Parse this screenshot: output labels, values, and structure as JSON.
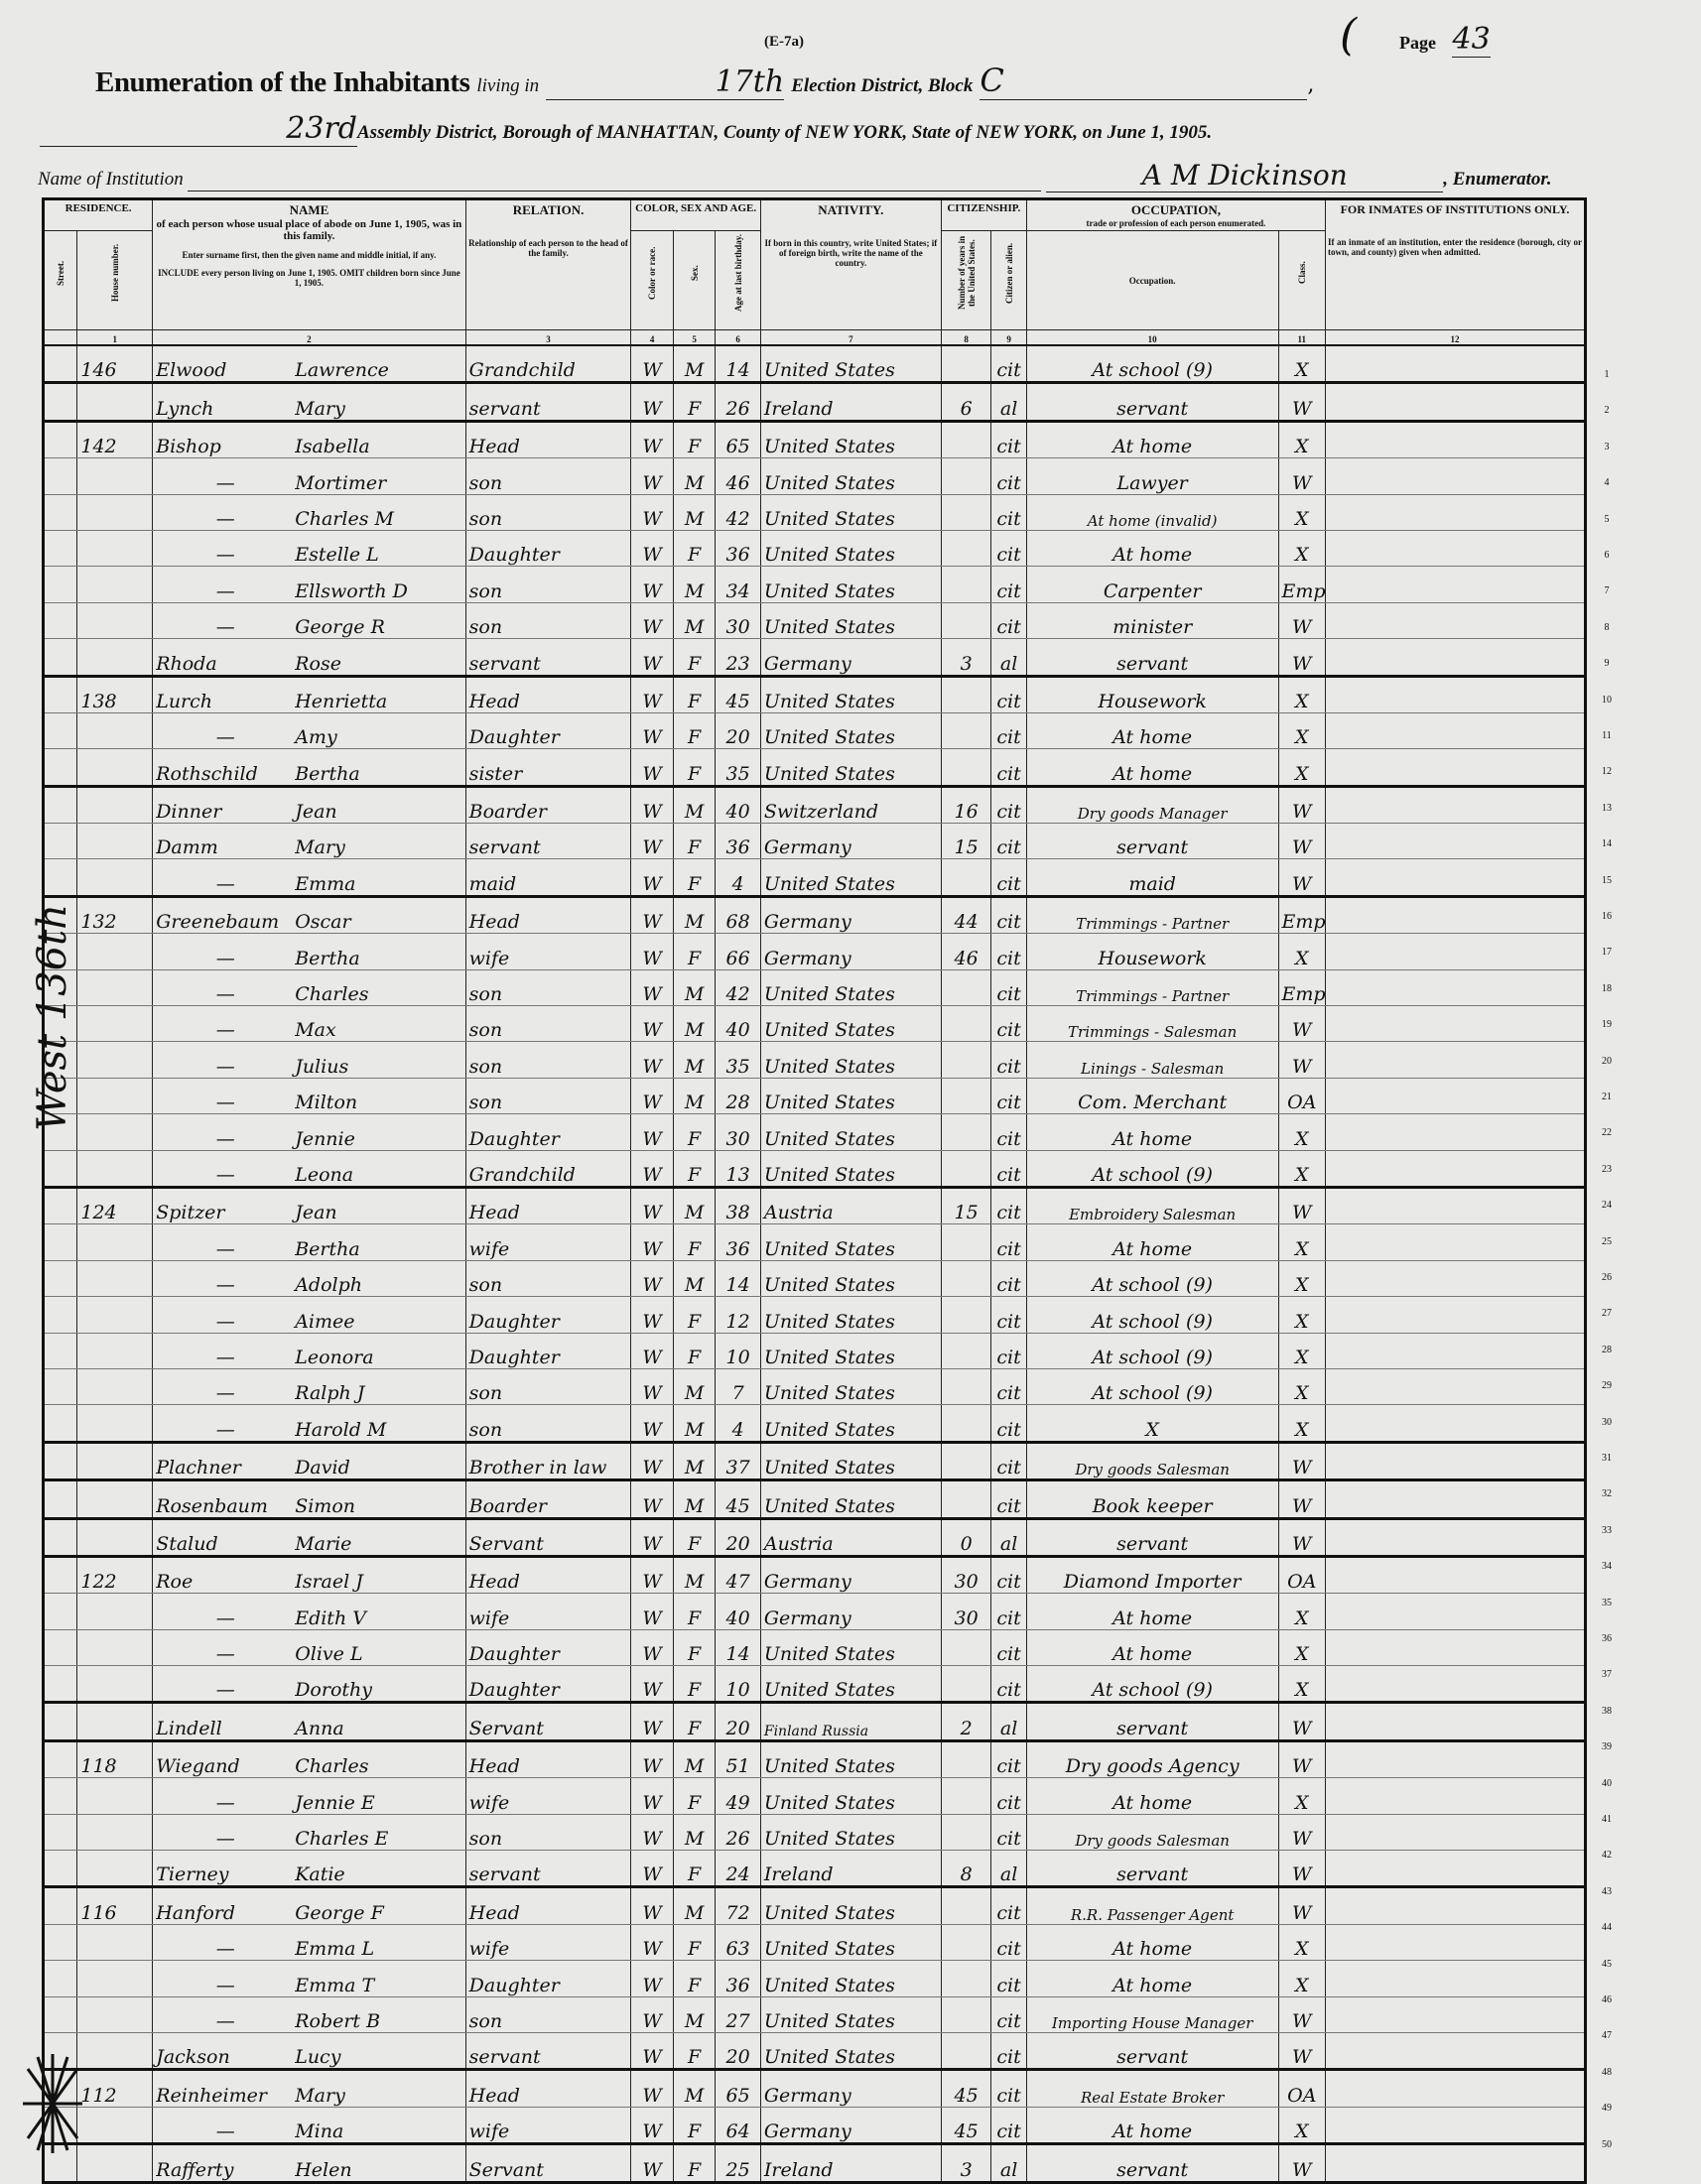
{
  "header": {
    "form_code": "(E-7a)",
    "page_label": "Page",
    "page_number": "43",
    "title_lead": "Enumeration of the Inhabitants",
    "living_in": "living in",
    "election_district": "17th",
    "election_district_label": "Election District, Block",
    "block": "C",
    "assembly_district": "23rd",
    "line2_text": "Assembly District, Borough of MANHATTAN, County of NEW YORK, State of NEW YORK, on June 1, 1905.",
    "institution_label": "Name of Institution",
    "enumerator_signature": "A M Dickinson",
    "enumerator_label": ", Enumerator."
  },
  "columns": {
    "residence": "RESIDENCE.",
    "street": "Street.",
    "house": "House number.",
    "name": "NAME",
    "name_desc": "of each person whose usual place of abode on June 1, 1905, was in this family.",
    "name_instr": "Enter surname first, then the given name and middle initial, if any.",
    "name_instr2": "INCLUDE every person living on June 1, 1905. OMIT children born since June 1, 1905.",
    "relation": "RELATION.",
    "relation_desc": "Relationship of each person to the head of the family.",
    "color_sex_age": "COLOR, SEX AND AGE.",
    "color": "Color or race.",
    "sex": "Sex.",
    "age": "Age at last birthday.",
    "nativity": "NATIVITY.",
    "nativity_desc": "If born in this country, write United States; if of foreign birth, write the name of the country.",
    "citizenship": "CITIZENSHIP.",
    "years_us": "Number of years in the United States.",
    "citizen_alien": "Citizen or alien.",
    "occupation": "OCCUPATION,",
    "occupation_desc": "trade or profession of each person enumerated.",
    "occupation_sub": "Occupation.",
    "class": "Class.",
    "inmates": "FOR INMATES OF INSTITUTIONS ONLY.",
    "inmates_desc": "If an inmate of an institution, enter the residence (borough, city or town, and county) given when admitted.",
    "numbers": [
      "1",
      "2",
      "3",
      "4",
      "5",
      "6",
      "7",
      "8",
      "9",
      "10",
      "11",
      "12"
    ]
  },
  "margin_note": "West 136th",
  "rows": [
    [
      "146",
      "Elwood",
      "Lawrence",
      "Grandchild",
      "W",
      "M",
      "14",
      "United States",
      "",
      "cit",
      "At school (9)",
      "X"
    ],
    [
      "",
      "Lynch",
      "Mary",
      "servant",
      "W",
      "F",
      "26",
      "Ireland",
      "6",
      "al",
      "servant",
      "W"
    ],
    [
      "142",
      "Bishop",
      "Isabella",
      "Head",
      "W",
      "F",
      "65",
      "United States",
      "",
      "cit",
      "At home",
      "X"
    ],
    [
      "",
      "—",
      "Mortimer",
      "son",
      "W",
      "M",
      "46",
      "United States",
      "",
      "cit",
      "Lawyer",
      "W"
    ],
    [
      "",
      "—",
      "Charles M",
      "son",
      "W",
      "M",
      "42",
      "United States",
      "",
      "cit",
      "At home (invalid)",
      "X"
    ],
    [
      "",
      "—",
      "Estelle L",
      "Daughter",
      "W",
      "F",
      "36",
      "United States",
      "",
      "cit",
      "At home",
      "X"
    ],
    [
      "",
      "—",
      "Ellsworth D",
      "son",
      "W",
      "M",
      "34",
      "United States",
      "",
      "cit",
      "Carpenter",
      "Emp"
    ],
    [
      "",
      "—",
      "George R",
      "son",
      "W",
      "M",
      "30",
      "United States",
      "",
      "cit",
      "minister",
      "W"
    ],
    [
      "",
      "Rhoda",
      "Rose",
      "servant",
      "W",
      "F",
      "23",
      "Germany",
      "3",
      "al",
      "servant",
      "W"
    ],
    [
      "138",
      "Lurch",
      "Henrietta",
      "Head",
      "W",
      "F",
      "45",
      "United States",
      "",
      "cit",
      "Housework",
      "X"
    ],
    [
      "",
      "—",
      "Amy",
      "Daughter",
      "W",
      "F",
      "20",
      "United States",
      "",
      "cit",
      "At home",
      "X"
    ],
    [
      "",
      "Rothschild",
      "Bertha",
      "sister",
      "W",
      "F",
      "35",
      "United States",
      "",
      "cit",
      "At home",
      "X"
    ],
    [
      "",
      "Dinner",
      "Jean",
      "Boarder",
      "W",
      "M",
      "40",
      "Switzerland",
      "16",
      "cit",
      "Dry goods Manager",
      "W"
    ],
    [
      "",
      "Damm",
      "Mary",
      "servant",
      "W",
      "F",
      "36",
      "Germany",
      "15",
      "cit",
      "servant",
      "W"
    ],
    [
      "",
      "—",
      "Emma",
      "maid",
      "W",
      "F",
      "4",
      "United States",
      "",
      "cit",
      "maid",
      "W"
    ],
    [
      "132",
      "Greenebaum",
      "Oscar",
      "Head",
      "W",
      "M",
      "68",
      "Germany",
      "44",
      "cit",
      "Trimmings - Partner",
      "Emp"
    ],
    [
      "",
      "—",
      "Bertha",
      "wife",
      "W",
      "F",
      "66",
      "Germany",
      "46",
      "cit",
      "Housework",
      "X"
    ],
    [
      "",
      "—",
      "Charles",
      "son",
      "W",
      "M",
      "42",
      "United States",
      "",
      "cit",
      "Trimmings - Partner",
      "Emp"
    ],
    [
      "",
      "—",
      "Max",
      "son",
      "W",
      "M",
      "40",
      "United States",
      "",
      "cit",
      "Trimmings - Salesman",
      "W"
    ],
    [
      "",
      "—",
      "Julius",
      "son",
      "W",
      "M",
      "35",
      "United States",
      "",
      "cit",
      "Linings - Salesman",
      "W"
    ],
    [
      "",
      "—",
      "Milton",
      "son",
      "W",
      "M",
      "28",
      "United States",
      "",
      "cit",
      "Com. Merchant",
      "OA"
    ],
    [
      "",
      "—",
      "Jennie",
      "Daughter",
      "W",
      "F",
      "30",
      "United States",
      "",
      "cit",
      "At home",
      "X"
    ],
    [
      "",
      "—",
      "Leona",
      "Grandchild",
      "W",
      "F",
      "13",
      "United States",
      "",
      "cit",
      "At school (9)",
      "X"
    ],
    [
      "124",
      "Spitzer",
      "Jean",
      "Head",
      "W",
      "M",
      "38",
      "Austria",
      "15",
      "cit",
      "Embroidery Salesman",
      "W"
    ],
    [
      "",
      "—",
      "Bertha",
      "wife",
      "W",
      "F",
      "36",
      "United States",
      "",
      "cit",
      "At home",
      "X"
    ],
    [
      "",
      "—",
      "Adolph",
      "son",
      "W",
      "M",
      "14",
      "United States",
      "",
      "cit",
      "At school (9)",
      "X"
    ],
    [
      "",
      "—",
      "Aimee",
      "Daughter",
      "W",
      "F",
      "12",
      "United States",
      "",
      "cit",
      "At school (9)",
      "X"
    ],
    [
      "",
      "—",
      "Leonora",
      "Daughter",
      "W",
      "F",
      "10",
      "United States",
      "",
      "cit",
      "At school (9)",
      "X"
    ],
    [
      "",
      "—",
      "Ralph J",
      "son",
      "W",
      "M",
      "7",
      "United States",
      "",
      "cit",
      "At school (9)",
      "X"
    ],
    [
      "",
      "—",
      "Harold M",
      "son",
      "W",
      "M",
      "4",
      "United States",
      "",
      "cit",
      "X",
      "X"
    ],
    [
      "",
      "Plachner",
      "David",
      "Brother in law",
      "W",
      "M",
      "37",
      "United States",
      "",
      "cit",
      "Dry goods Salesman",
      "W"
    ],
    [
      "",
      "Rosenbaum",
      "Simon",
      "Boarder",
      "W",
      "M",
      "45",
      "United States",
      "",
      "cit",
      "Book keeper",
      "W"
    ],
    [
      "",
      "Stalud",
      "Marie",
      "Servant",
      "W",
      "F",
      "20",
      "Austria",
      "0",
      "al",
      "servant",
      "W"
    ],
    [
      "122",
      "Roe",
      "Israel J",
      "Head",
      "W",
      "M",
      "47",
      "Germany",
      "30",
      "cit",
      "Diamond Importer",
      "OA"
    ],
    [
      "",
      "—",
      "Edith V",
      "wife",
      "W",
      "F",
      "40",
      "Germany",
      "30",
      "cit",
      "At home",
      "X"
    ],
    [
      "",
      "—",
      "Olive L",
      "Daughter",
      "W",
      "F",
      "14",
      "United States",
      "",
      "cit",
      "At home",
      "X"
    ],
    [
      "",
      "—",
      "Dorothy",
      "Daughter",
      "W",
      "F",
      "10",
      "United States",
      "",
      "cit",
      "At school (9)",
      "X"
    ],
    [
      "",
      "Lindell",
      "Anna",
      "Servant",
      "W",
      "F",
      "20",
      "Finland Russia",
      "2",
      "al",
      "servant",
      "W"
    ],
    [
      "118",
      "Wiegand",
      "Charles",
      "Head",
      "W",
      "M",
      "51",
      "United States",
      "",
      "cit",
      "Dry goods Agency",
      "W"
    ],
    [
      "",
      "—",
      "Jennie E",
      "wife",
      "W",
      "F",
      "49",
      "United States",
      "",
      "cit",
      "At home",
      "X"
    ],
    [
      "",
      "—",
      "Charles E",
      "son",
      "W",
      "M",
      "26",
      "United States",
      "",
      "cit",
      "Dry goods Salesman",
      "W"
    ],
    [
      "",
      "Tierney",
      "Katie",
      "servant",
      "W",
      "F",
      "24",
      "Ireland",
      "8",
      "al",
      "servant",
      "W"
    ],
    [
      "116",
      "Hanford",
      "George F",
      "Head",
      "W",
      "M",
      "72",
      "United States",
      "",
      "cit",
      "R.R. Passenger Agent",
      "W"
    ],
    [
      "",
      "—",
      "Emma L",
      "wife",
      "W",
      "F",
      "63",
      "United States",
      "",
      "cit",
      "At home",
      "X"
    ],
    [
      "",
      "—",
      "Emma T",
      "Daughter",
      "W",
      "F",
      "36",
      "United States",
      "",
      "cit",
      "At home",
      "X"
    ],
    [
      "",
      "—",
      "Robert B",
      "son",
      "W",
      "M",
      "27",
      "United States",
      "",
      "cit",
      "Importing House Manager",
      "W"
    ],
    [
      "",
      "Jackson",
      "Lucy",
      "servant",
      "W",
      "F",
      "20",
      "United States",
      "",
      "cit",
      "servant",
      "W"
    ],
    [
      "112",
      "Reinheimer",
      "Mary",
      "Head",
      "W",
      "M",
      "65",
      "Germany",
      "45",
      "cit",
      "Real Estate Broker",
      "OA"
    ],
    [
      "",
      "—",
      "Mina",
      "wife",
      "W",
      "F",
      "64",
      "Germany",
      "45",
      "cit",
      "At home",
      "X"
    ],
    [
      "",
      "Rafferty",
      "Helen",
      "Servant",
      "W",
      "F",
      "25",
      "Ireland",
      "3",
      "al",
      "servant",
      "W"
    ]
  ],
  "family_end_rows": [
    1,
    2,
    9,
    12,
    15,
    23,
    30,
    31,
    32,
    33,
    37,
    38,
    42,
    47,
    49
  ]
}
